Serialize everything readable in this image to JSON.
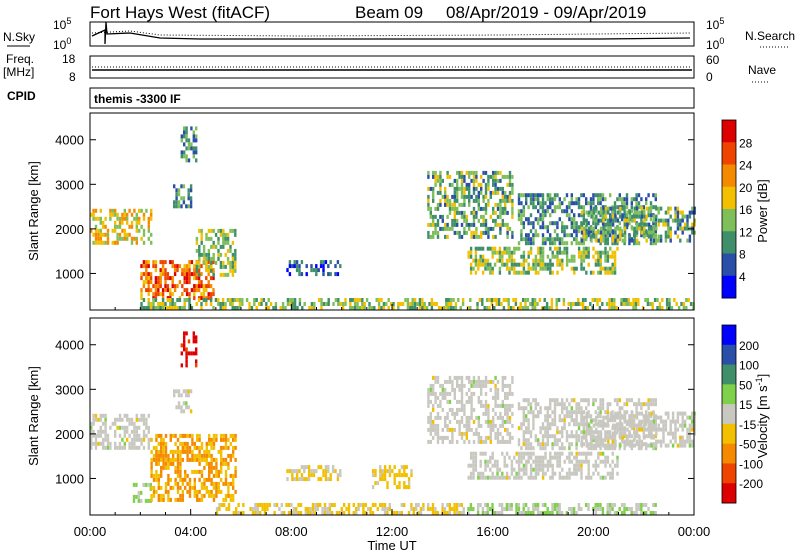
{
  "header": {
    "station": "Fort Hays West (fitACF)",
    "beam": "Beam 09",
    "dates": "08/Apr/2019 - 09/Apr/2019"
  },
  "top_panels": {
    "nsky_label": "N.Sky",
    "nsky_max": "10^5",
    "nsky_min": "10^0",
    "nsearch_label": "N.Search",
    "nsearch_max": "10^5",
    "nsearch_min": "10^0",
    "freq_label_1": "Freq.",
    "freq_label_2": "[MHz]",
    "freq_max": "18",
    "freq_min": "8",
    "nave_label": "Nave",
    "nave_max": "60",
    "nave_min": "0",
    "cpid_label": "CPID",
    "cpid_value": "themis -3300 IF"
  },
  "x_axis": {
    "label": "Time UT",
    "ticks": [
      "00:00",
      "04:00",
      "08:00",
      "12:00",
      "16:00",
      "20:00",
      "00:00"
    ]
  },
  "colors": {
    "power": [
      "#0000ff",
      "#2a4fa8",
      "#3f8f6a",
      "#7fbf5a",
      "#f2c000",
      "#f58a00",
      "#ee4400",
      "#dd0000"
    ],
    "velocity": [
      "#dd0000",
      "#ee4400",
      "#f58a00",
      "#f2c000",
      "#c8c8c0",
      "#7fd04a",
      "#3f8f6a",
      "#2a4fa8",
      "#0000ff"
    ],
    "ground_scatter": "#c8c8c0"
  },
  "chart_data": [
    {
      "type": "heatmap",
      "name": "power",
      "ylabel": "Slant Range [km]",
      "ylim": [
        180,
        4600
      ],
      "yticks": [
        1000,
        2000,
        3000,
        4000
      ],
      "xlim": [
        0,
        24
      ],
      "colorbar_label": "Power [dB]",
      "colorbar_ticks": [
        "28",
        "24",
        "20",
        "16",
        "12",
        "8",
        "4"
      ],
      "colorbar_range": [
        0,
        32
      ],
      "regions": [
        {
          "t0": 0.0,
          "t1": 2.4,
          "r0": 1700,
          "r1": 2450,
          "value": 18
        },
        {
          "t0": 2.0,
          "t1": 4.9,
          "r0": 450,
          "r1": 1300,
          "value": 24
        },
        {
          "t0": 4.2,
          "t1": 5.8,
          "r0": 1000,
          "r1": 2000,
          "value": 14
        },
        {
          "t0": 3.6,
          "t1": 4.2,
          "r0": 3500,
          "r1": 4300,
          "value": 10
        },
        {
          "t0": 3.3,
          "t1": 4.0,
          "r0": 2500,
          "r1": 3000,
          "value": 10
        },
        {
          "t0": 7.8,
          "t1": 9.9,
          "r0": 950,
          "r1": 1300,
          "value": 6
        },
        {
          "t0": 2.0,
          "t1": 24.0,
          "r0": 200,
          "r1": 450,
          "value": 14
        },
        {
          "t0": 13.4,
          "t1": 16.8,
          "r0": 1800,
          "r1": 3300,
          "value": 12
        },
        {
          "t0": 15.0,
          "t1": 21.0,
          "r0": 1000,
          "r1": 1600,
          "value": 14
        },
        {
          "t0": 17.0,
          "t1": 22.5,
          "r0": 1650,
          "r1": 2800,
          "value": 10
        },
        {
          "t0": 19.5,
          "t1": 24.0,
          "r0": 1700,
          "r1": 2500,
          "value": 12
        }
      ]
    },
    {
      "type": "heatmap",
      "name": "velocity",
      "ylabel": "Slant Range [km]",
      "ylim": [
        180,
        4600
      ],
      "yticks": [
        1000,
        2000,
        3000,
        4000
      ],
      "xlim": [
        0,
        24
      ],
      "colorbar_label": "Velocity [m s^-1]",
      "colorbar_ticks": [
        "200",
        "100",
        "50",
        "15",
        "-15",
        "-50",
        "-100",
        "-200"
      ],
      "colorbar_range": [
        -250,
        250
      ],
      "regions": [
        {
          "t0": 0.0,
          "t1": 2.4,
          "r0": 1700,
          "r1": 2450,
          "value": 0
        },
        {
          "t0": 1.7,
          "t1": 2.4,
          "r0": 500,
          "r1": 900,
          "value": 40
        },
        {
          "t0": 2.4,
          "t1": 5.8,
          "r0": 500,
          "r1": 2000,
          "value": -80
        },
        {
          "t0": 3.6,
          "t1": 4.2,
          "r0": 3500,
          "r1": 4300,
          "value": -220
        },
        {
          "t0": 3.3,
          "t1": 4.0,
          "r0": 2500,
          "r1": 3000,
          "value": 0
        },
        {
          "t0": 7.8,
          "t1": 9.9,
          "r0": 950,
          "r1": 1300,
          "value": -40
        },
        {
          "t0": 11.2,
          "t1": 12.8,
          "r0": 800,
          "r1": 1300,
          "value": -40
        },
        {
          "t0": 5.0,
          "t1": 14.8,
          "r0": 200,
          "r1": 450,
          "value": -40
        },
        {
          "t0": 14.8,
          "t1": 22.5,
          "r0": 200,
          "r1": 450,
          "value": 30
        },
        {
          "t0": 13.4,
          "t1": 16.8,
          "r0": 1800,
          "r1": 3300,
          "value": 0
        },
        {
          "t0": 15.0,
          "t1": 21.0,
          "r0": 1000,
          "r1": 1600,
          "value": 0
        },
        {
          "t0": 17.0,
          "t1": 22.5,
          "r0": 1650,
          "r1": 2800,
          "value": 0
        },
        {
          "t0": 19.5,
          "t1": 24.0,
          "r0": 1700,
          "r1": 2500,
          "value": 0
        }
      ]
    }
  ]
}
